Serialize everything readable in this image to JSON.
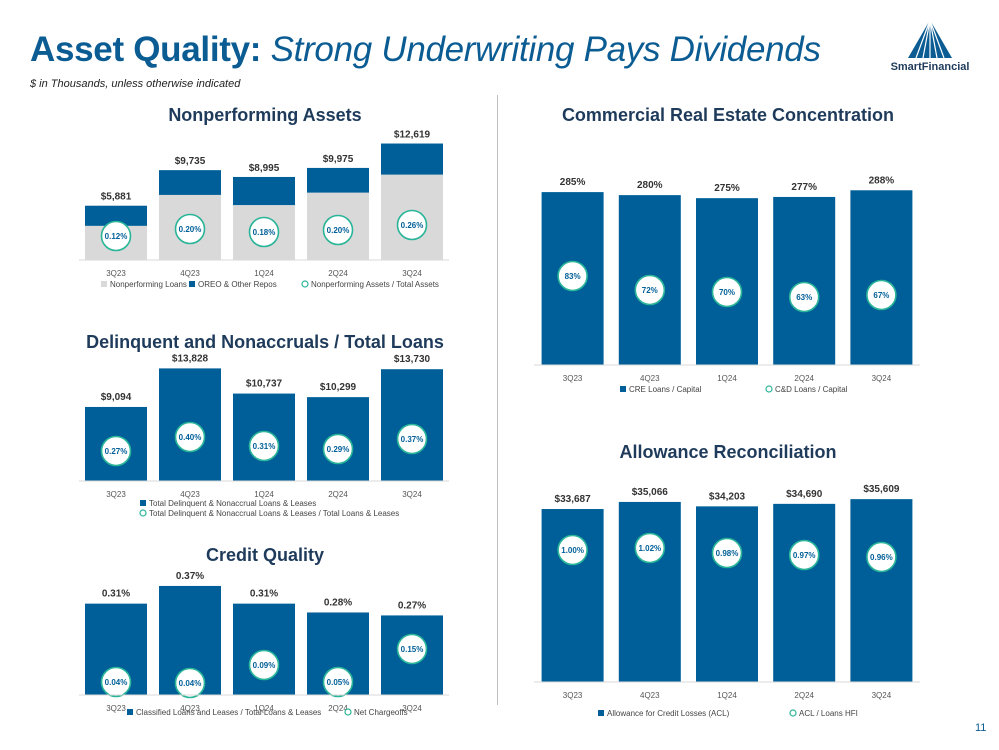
{
  "header": {
    "title_bold": "Asset Quality:",
    "title_italic": "Strong Underwriting Pays Dividends",
    "subtitle": "$ in Thousands, unless otherwise indicated",
    "logo_text": "SmartFinancial",
    "page_number": "11"
  },
  "colors": {
    "navy": "#005f98",
    "gray": "#d9d9d9",
    "teal": "#2ab598",
    "text": "#1f3b5b"
  },
  "chart_data": [
    {
      "id": "npa",
      "type": "bar",
      "stacked": true,
      "title": "Nonperforming Assets",
      "categories": [
        "3Q23",
        "4Q23",
        "1Q24",
        "2Q24",
        "3Q24"
      ],
      "series": [
        {
          "name": "Nonperforming Loans",
          "values": [
            3700,
            7050,
            5950,
            7300,
            9250
          ]
        },
        {
          "name": "OREO & Other Repos",
          "values": [
            2181,
            2685,
            3045,
            2675,
            3369
          ]
        }
      ],
      "totals": [
        "$5,881",
        "$9,735",
        "$8,995",
        "$9,975",
        "$12,619"
      ],
      "ratio_series": {
        "name": "Nonperforming Assets / Total Assets",
        "labels": [
          "0.12%",
          "0.20%",
          "0.18%",
          "0.20%",
          "0.26%"
        ]
      },
      "ylim": [
        0,
        13000
      ]
    },
    {
      "id": "delinquent",
      "type": "bar",
      "title": "Delinquent and Nonaccruals / Total Loans",
      "categories": [
        "3Q23",
        "4Q23",
        "1Q24",
        "2Q24",
        "3Q24"
      ],
      "series": [
        {
          "name": "Total Delinquent & Nonaccrual Loans & Leases",
          "values": [
            9094,
            13828,
            10737,
            10299,
            13730
          ]
        }
      ],
      "value_labels": [
        "$9,094",
        "$13,828",
        "$10,737",
        "$10,299",
        "$13,730"
      ],
      "ratio_series": {
        "name": "Total Delinquent & Nonaccrual Loans & Leases / Total Loans & Leases",
        "labels": [
          "0.27%",
          "0.40%",
          "0.31%",
          "0.29%",
          "0.37%"
        ]
      },
      "ylim": [
        0,
        14000
      ]
    },
    {
      "id": "credit",
      "type": "bar",
      "title": "Credit Quality",
      "categories": [
        "3Q23",
        "4Q23",
        "1Q24",
        "2Q24",
        "3Q24"
      ],
      "series": [
        {
          "name": "Classified Loans and Leases / Total Loans & Leases",
          "values": [
            0.31,
            0.37,
            0.31,
            0.28,
            0.27
          ]
        }
      ],
      "value_labels": [
        "0.31%",
        "0.37%",
        "0.31%",
        "0.28%",
        "0.27%"
      ],
      "ratio_series": {
        "name": "Net Chargeoffs",
        "labels": [
          "0.04%",
          "0.04%",
          "0.09%",
          "0.05%",
          "0.15%"
        ]
      },
      "ylim": [
        0,
        0.38
      ]
    },
    {
      "id": "cre",
      "type": "bar",
      "title": "Commercial Real Estate Concentration",
      "categories": [
        "3Q23",
        "4Q23",
        "1Q24",
        "2Q24",
        "3Q24"
      ],
      "series": [
        {
          "name": "CRE Loans / Capital",
          "values": [
            285,
            280,
            275,
            277,
            288
          ]
        }
      ],
      "value_labels": [
        "285%",
        "280%",
        "275%",
        "277%",
        "288%"
      ],
      "ratio_series": {
        "name": "C&D Loans / Capital",
        "labels": [
          "83%",
          "72%",
          "70%",
          "63%",
          "67%"
        ]
      },
      "ylim": [
        0,
        300
      ]
    },
    {
      "id": "acl",
      "type": "bar",
      "title": "Allowance Reconciliation",
      "categories": [
        "3Q23",
        "4Q23",
        "1Q24",
        "2Q24",
        "3Q24"
      ],
      "series": [
        {
          "name": "Allowance for Credit Losses (ACL)",
          "values": [
            33687,
            35066,
            34203,
            34690,
            35609
          ]
        }
      ],
      "value_labels": [
        "$33,687",
        "$35,066",
        "$34,203",
        "$34,690",
        "$35,609"
      ],
      "ratio_series": {
        "name": "ACL / Loans HFI",
        "labels": [
          "1.00%",
          "1.02%",
          "0.98%",
          "0.97%",
          "0.96%"
        ]
      },
      "ylim": [
        0,
        37000
      ]
    }
  ]
}
